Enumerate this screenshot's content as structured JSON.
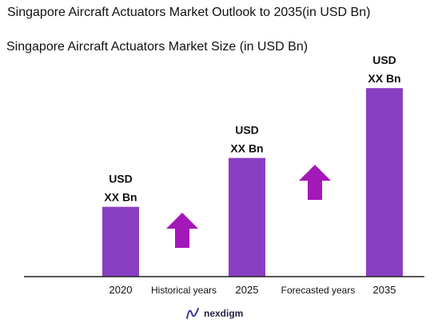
{
  "page": {
    "title": "Singapore Aircraft Actuators Market Outlook to 2035(in USD Bn)",
    "subtitle": "Singapore Aircraft Actuators Market Size (in USD Bn)"
  },
  "chart_data": {
    "type": "bar",
    "categories": [
      "2020",
      "2025",
      "2035"
    ],
    "values": [
      1.0,
      1.7,
      2.7
    ],
    "data_labels": [
      [
        "USD",
        "XX Bn"
      ],
      [
        "USD",
        "XX Bn"
      ],
      [
        "USD",
        "XX Bn"
      ]
    ],
    "ylim": [
      0,
      3.0
    ],
    "bar_color": "#8A3FC2",
    "arrow_color": "#A318B8",
    "period_labels": [
      "Historical years",
      "Forecasted years"
    ],
    "grid": false,
    "legend": "none"
  },
  "logo": {
    "text": "nexdigm",
    "icon": "nexdigm-logo-icon"
  }
}
